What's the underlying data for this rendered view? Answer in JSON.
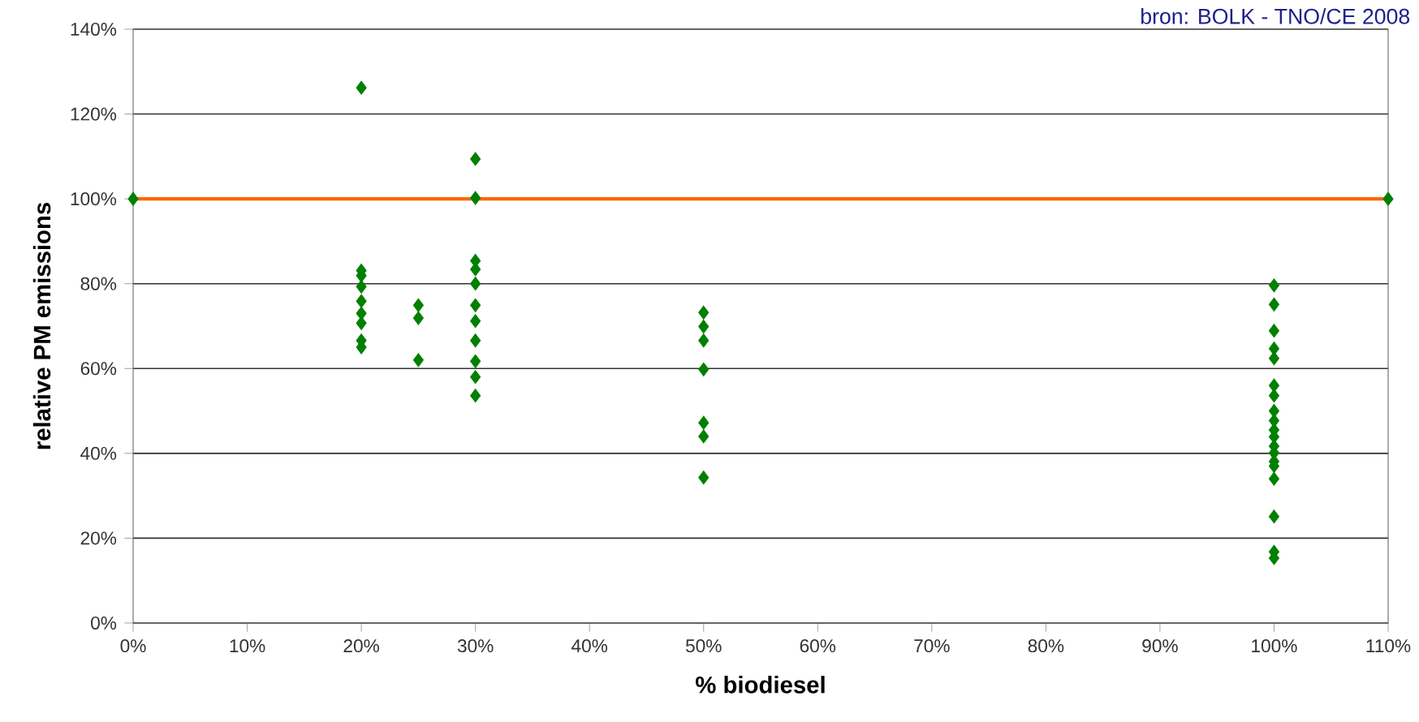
{
  "chart_data": {
    "type": "scatter",
    "xlabel": "% biodiesel",
    "ylabel": "relative PM emissions",
    "annotations": [
      "bron: BOLK - TNO/CE 2008"
    ],
    "series": [
      {
        "color": "#008000",
        "x": [
          0,
          20,
          20,
          20,
          20,
          20,
          20,
          20,
          20,
          20,
          25,
          25,
          25,
          30,
          30,
          30,
          30,
          30,
          30,
          30,
          30,
          30,
          30,
          30,
          50,
          50,
          50,
          50,
          50,
          50,
          50,
          100,
          100,
          100,
          100,
          100,
          100,
          100,
          100,
          100,
          100,
          100,
          100,
          100,
          100,
          100,
          100,
          100,
          100,
          100,
          110
        ],
        "values": [
          100,
          126.2,
          83.1,
          81.9,
          79.3,
          75.9,
          73.0,
          70.7,
          66.6,
          65.0,
          74.9,
          71.9,
          62.0,
          109.4,
          100.2,
          85.4,
          83.4,
          80.0,
          74.9,
          71.2,
          66.6,
          61.7,
          58.0,
          53.6,
          73.2,
          69.9,
          66.6,
          59.8,
          47.2,
          44.0,
          34.3,
          79.6,
          75.1,
          68.9,
          64.7,
          62.4,
          56.0,
          53.6,
          50.0,
          47.7,
          45.5,
          43.9,
          41.7,
          40.1,
          38.1,
          37.0,
          34.0,
          25.1,
          16.8,
          15.3,
          100
        ]
      }
    ],
    "ref_lines": [
      {
        "axis": "y",
        "value": 100,
        "color": "#ff6600"
      }
    ],
    "marker": "diamond",
    "grid": "y",
    "xlim": [
      0,
      110
    ],
    "ylim": [
      0,
      140
    ],
    "xticks": [
      {
        "value": 0,
        "label": "0%"
      },
      {
        "value": 10,
        "label": "10%"
      },
      {
        "value": 20,
        "label": "20%"
      },
      {
        "value": 30,
        "label": "30%"
      },
      {
        "value": 40,
        "label": "40%"
      },
      {
        "value": 50,
        "label": "50%"
      },
      {
        "value": 60,
        "label": "60%"
      },
      {
        "value": 70,
        "label": "70%"
      },
      {
        "value": 80,
        "label": "80%"
      },
      {
        "value": 90,
        "label": "90%"
      },
      {
        "value": 100,
        "label": "100%"
      },
      {
        "value": 110,
        "label": "110%"
      }
    ],
    "yticks": [
      {
        "value": 0,
        "label": "0%"
      },
      {
        "value": 20,
        "label": "20%"
      },
      {
        "value": 40,
        "label": "40%"
      },
      {
        "value": 60,
        "label": "60%"
      },
      {
        "value": 80,
        "label": "80%"
      },
      {
        "value": 100,
        "label": "100%"
      },
      {
        "value": 120,
        "label": "120%"
      },
      {
        "value": 140,
        "label": "140%"
      }
    ]
  }
}
